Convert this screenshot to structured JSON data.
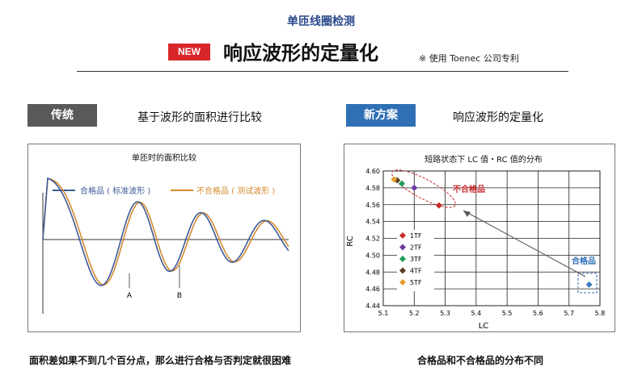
{
  "header": {
    "top_title": "单匝线圈检测",
    "badge": "NEW",
    "headline": "响应波形的定量化",
    "patent_note": "※ 使用 Toenec 公司专利"
  },
  "left": {
    "tag": "传统",
    "subtitle": "基于波形的面积进行比较",
    "footer": "面积差如果不到几个百分点，那么进行合格与否判定就很困难"
  },
  "right": {
    "tag": "新方案",
    "subtitle": "响应波形的定量化",
    "footer": "合格品和不合格品的分布不同"
  },
  "colors": {
    "good": "#3d5a98",
    "bad": "#d18a2e",
    "badge": "#d8262b",
    "new_tag": "#2f6fb5",
    "trad_tag": "#595959",
    "ng_group": "#cc2a2a"
  },
  "chart_data": [
    {
      "type": "line",
      "title": "单匝时的面积比较",
      "legend": [
        {
          "name": "合格品 ( 标准波形 )",
          "color": "#3d5a98"
        },
        {
          "name": "不合格品 ( 测试波形 )",
          "color": "#d18a2e"
        }
      ],
      "annotations": [
        "A",
        "B"
      ],
      "legend_position": "top",
      "grid": false,
      "axes": "baseline only, no ticks"
    },
    {
      "type": "scatter",
      "title": "短路状态下 LC 值・RC 值的分布",
      "xlabel": "LC",
      "ylabel": "RC",
      "xlim": [
        5.1,
        5.8
      ],
      "ylim": [
        4.44,
        4.6
      ],
      "xticks": [
        "5.1",
        "5.2",
        "5.3",
        "5.4",
        "5.5",
        "5.6",
        "5.7",
        "5.8"
      ],
      "yticks": [
        "4.44",
        "4.46",
        "4.48",
        "4.50",
        "4.52",
        "4.54",
        "4.56",
        "4.58",
        "4.60"
      ],
      "grid": true,
      "legend_position": "bottom-left",
      "series": [
        {
          "name": "1TF",
          "color": "#cc2a2a",
          "points": [
            [
              5.28,
              4.559
            ]
          ]
        },
        {
          "name": "2TF",
          "color": "#6a3a9c",
          "points": [
            [
              5.2,
              4.58
            ]
          ]
        },
        {
          "name": "3TF",
          "color": "#1f9a5a",
          "points": [
            [
              5.16,
              4.585
            ]
          ]
        },
        {
          "name": "4TF",
          "color": "#5a3c22",
          "points": [
            [
              5.145,
              4.589
            ]
          ]
        },
        {
          "name": "5TF",
          "color": "#e89c2e",
          "points": [
            [
              5.135,
              4.59
            ]
          ]
        },
        {
          "name": "合格品",
          "color": "#3d7cc4",
          "points": [
            [
              5.765,
              4.465
            ]
          ]
        }
      ],
      "annotations": [
        "不合格品",
        "合格品"
      ]
    }
  ]
}
